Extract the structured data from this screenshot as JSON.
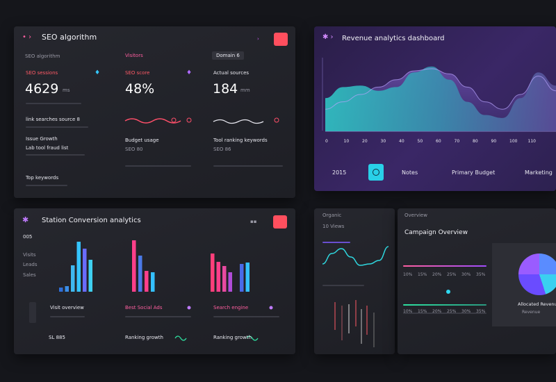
{
  "seo": {
    "title": "SEO algorithm",
    "subtitle": "SEO algorithm",
    "tab": "Visitors",
    "badge": "Domain 6",
    "stats": [
      {
        "label": "SEO sessions",
        "value": "4629",
        "unit": "ms"
      },
      {
        "label": "SEO score",
        "value": "48%"
      },
      {
        "label": "Actual sources",
        "value": "184",
        "unit": "mm"
      }
    ],
    "rows": [
      "link searches source 8",
      "Issue Growth",
      "Lab tool fraud list",
      "Budget usage",
      "SEO 80",
      "Tool ranking keywords",
      "SEO 86",
      "Top keywords"
    ]
  },
  "revenue": {
    "title": "Revenue analytics dashboard",
    "area": [
      45,
      60,
      62,
      55,
      60,
      80,
      88,
      70,
      40,
      22,
      18,
      45,
      80,
      62
    ],
    "line": [
      30,
      40,
      50,
      60,
      70,
      82,
      85,
      78,
      60,
      40,
      30,
      50,
      75,
      55
    ],
    "x_labels": [
      "0",
      "10",
      "20",
      "30",
      "40",
      "50",
      "60",
      "70",
      "80",
      "90",
      "100",
      "110"
    ],
    "footer": [
      "2015",
      "Notes",
      "Primary Budget",
      "Marketing"
    ]
  },
  "conversion": {
    "title": "Station Conversion analytics",
    "caption": "005",
    "axis_labels": [
      "Visits",
      "Leads",
      "Sales"
    ],
    "groups": [
      {
        "values": [
          6,
          8,
          38,
          72,
          62,
          46
        ],
        "colors": [
          "#2f6fd8",
          "#3a8ee8",
          "#3fb8f0",
          "#35c4ff",
          "#6a6cff",
          "#3fd0f0"
        ]
      },
      {
        "values": [
          74,
          52,
          30,
          28
        ],
        "colors": [
          "#ff3f8a",
          "#4a7ae8",
          "#ff3f8a",
          "#34c0ff"
        ]
      },
      {
        "values": [
          55,
          43,
          37,
          28,
          40,
          42
        ],
        "colors": [
          "#ff3f7a",
          "#ff3f8a",
          "#e84aa0",
          "#b04cd8",
          "#4a6ae8",
          "#34c0ff"
        ]
      }
    ],
    "rows": [
      "Visit overview",
      "Best Social Ads",
      "Search engine",
      "SL 885",
      "Ranking growth",
      "Ranking growth"
    ]
  },
  "organic": {
    "title": "Organic",
    "subtitle": "10 Views",
    "line": [
      30,
      45,
      52,
      40,
      28,
      30,
      35,
      55
    ]
  },
  "campaign": {
    "title": "Overview",
    "heading": "Campaign Overview",
    "percents": [
      "10%",
      "15%",
      "20%",
      "25%",
      "30%",
      "35%"
    ],
    "pie_label": "Allocated Revenue",
    "pie_sublabel": "Revenue"
  }
}
